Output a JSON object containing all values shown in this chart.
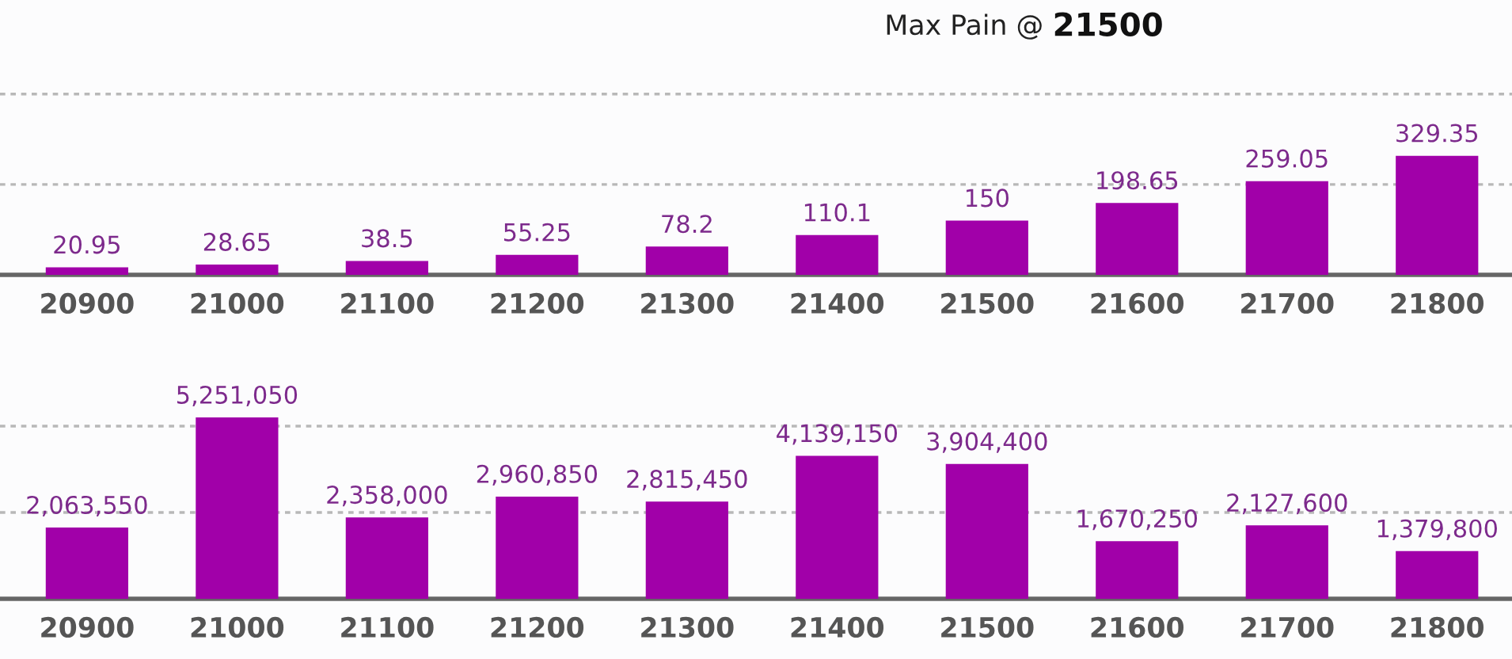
{
  "chart_data": [
    {
      "type": "bar",
      "title": "Max Pain @ 21500",
      "categories": [
        "20900",
        "21000",
        "21100",
        "21200",
        "21300",
        "21400",
        "21500",
        "21600",
        "21700",
        "21800"
      ],
      "values": [
        20.95,
        28.65,
        38.5,
        55.25,
        78.2,
        110.1,
        150,
        198.65,
        259.05,
        329.35
      ],
      "value_labels": [
        "20.95",
        "28.65",
        "38.5",
        "55.25",
        "78.2",
        "110.1",
        "150",
        "198.65",
        "259.05",
        "329.35"
      ],
      "color": "#a100a9",
      "ref_lines": [
        {
          "axis": "y",
          "value": 250,
          "color": "#b8b8b8",
          "line_style": "dotted"
        },
        {
          "axis": "y",
          "value": 500,
          "color": "#b8b8b8",
          "line_style": "dotted"
        }
      ],
      "tick_labels": "x"
    },
    {
      "type": "bar",
      "categories": [
        "20900",
        "21000",
        "21100",
        "21200",
        "21300",
        "21400",
        "21500",
        "21600",
        "21700",
        "21800"
      ],
      "values": [
        2063550,
        5251050,
        2358000,
        2960850,
        2815450,
        4139150,
        3904400,
        1670250,
        2127600,
        1379800
      ],
      "value_labels": [
        "2,063,550",
        "5,251,050",
        "2,358,000",
        "2,960,850",
        "2,815,450",
        "4,139,150",
        "3,904,400",
        "1,670,250",
        "2,127,600",
        "1,379,800"
      ],
      "color": "#a100a9",
      "ref_lines": [
        {
          "axis": "y",
          "value": 2500000,
          "color": "#b8b8b8",
          "line_style": "dotted"
        },
        {
          "axis": "y",
          "value": 5000000,
          "color": "#b8b8b8",
          "line_style": "dotted"
        }
      ],
      "tick_labels": "x"
    }
  ]
}
